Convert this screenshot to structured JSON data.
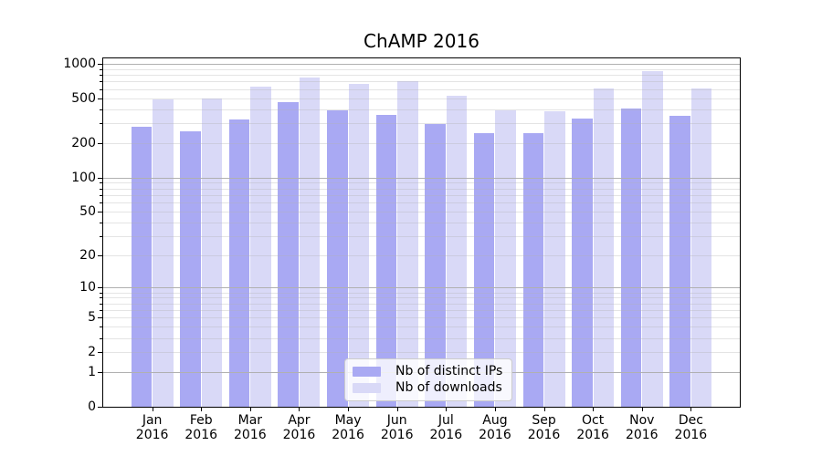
{
  "title": "ChAMP 2016",
  "colors": {
    "distinct_ips": "#a9a9f3",
    "downloads": "#d9d9f7",
    "grid_major": "#b0b0b0",
    "axis": "#000000"
  },
  "chart_data": {
    "type": "bar",
    "title": "ChAMP 2016",
    "xlabel": "",
    "ylabel": "",
    "yscale": "symlog",
    "ylim": [
      0,
      1115
    ],
    "y_ticks": [
      1000,
      500,
      200,
      100,
      50,
      20,
      10,
      5,
      2,
      1,
      0
    ],
    "grid": "horizontal, major at powers of 10, faint minors at 2-9 multiples",
    "legend_position": "inside lower-center",
    "categories": [
      "Jan 2016",
      "Feb 2016",
      "Mar 2016",
      "Apr 2016",
      "May 2016",
      "Jun 2016",
      "Jul 2016",
      "Aug 2016",
      "Sep 2016",
      "Oct 2016",
      "Nov 2016",
      "Dec 2016"
    ],
    "series": [
      {
        "name": "Nb of distinct IPs",
        "key": "distinct-ips",
        "color": "#a9a9f3",
        "values": [
          278,
          255,
          323,
          461,
          394,
          357,
          294,
          248,
          246,
          332,
          404,
          349
        ]
      },
      {
        "name": "Nb of downloads",
        "key": "downloads",
        "color": "#d9d9f7",
        "values": [
          490,
          497,
          626,
          760,
          664,
          701,
          523,
          391,
          387,
          609,
          860,
          609
        ]
      }
    ]
  }
}
